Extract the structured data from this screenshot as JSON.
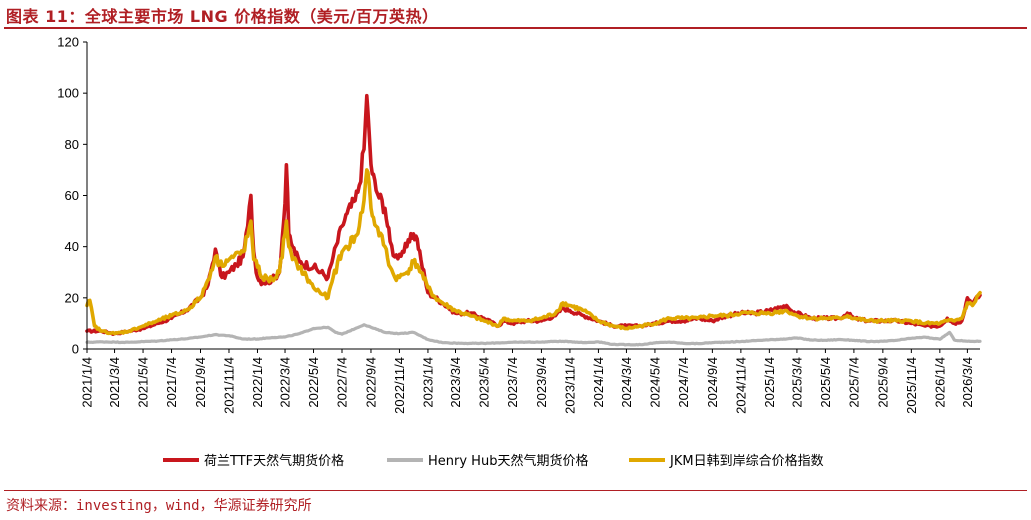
{
  "header": {
    "title": "图表 11：全球主要市场 LNG 价格指数（美元/百万英热）"
  },
  "footer": {
    "source": "资料来源：investing，wind，华源证券研究所"
  },
  "colors": {
    "ttf": "#c8161d",
    "henry": "#b4b4b4",
    "jkm": "#e0a800",
    "brand": "#b01f24"
  },
  "chart_data": {
    "type": "line",
    "title": "全球主要市场 LNG 价格指数（美元/百万英热）",
    "ylim": [
      0,
      120
    ],
    "yticks": [
      0,
      20,
      40,
      60,
      80,
      100,
      120
    ],
    "xlim": [
      "2021-01-04",
      "2026-03-31"
    ],
    "xtick_labels": [
      "2021/1/4",
      "2021/3/4",
      "2021/5/4",
      "2021/7/4",
      "2021/9/4",
      "2021/11/4",
      "2022/1/4",
      "2022/3/4",
      "2022/5/4",
      "2022/7/4",
      "2022/9/4",
      "2022/11/4",
      "2023/1/4",
      "2023/3/4",
      "2023/5/4",
      "2023/7/4",
      "2023/9/4",
      "2023/11/4",
      "2024/1/4",
      "2024/3/4",
      "2024/5/4",
      "2024/7/4",
      "2024/9/4",
      "2024/11/4",
      "2025/1/4",
      "2025/3/4",
      "2025/5/4",
      "2025/7/4",
      "2025/9/4",
      "2025/11/4",
      "2026/1/4",
      "2026/3/4"
    ],
    "grid": false,
    "legend_position": "bottom",
    "series": [
      {
        "name": "荷兰TTF天然气期货价格",
        "color": "#c8161d",
        "points": [
          [
            "2021-01-04",
            7
          ],
          [
            "2021-02-04",
            7
          ],
          [
            "2021-03-04",
            6
          ],
          [
            "2021-04-04",
            7
          ],
          [
            "2021-05-04",
            8
          ],
          [
            "2021-06-04",
            10
          ],
          [
            "2021-07-04",
            12
          ],
          [
            "2021-08-04",
            15
          ],
          [
            "2021-09-04",
            20
          ],
          [
            "2021-09-20",
            25
          ],
          [
            "2021-10-06",
            39
          ],
          [
            "2021-10-12",
            33
          ],
          [
            "2021-10-20",
            28
          ],
          [
            "2021-11-04",
            30
          ],
          [
            "2021-11-20",
            33
          ],
          [
            "2021-12-04",
            36
          ],
          [
            "2021-12-14",
            48
          ],
          [
            "2021-12-21",
            60
          ],
          [
            "2021-12-27",
            38
          ],
          [
            "2022-01-04",
            28
          ],
          [
            "2022-01-15",
            26
          ],
          [
            "2022-02-04",
            27
          ],
          [
            "2022-02-20",
            30
          ],
          [
            "2022-03-04",
            57
          ],
          [
            "2022-03-07",
            72
          ],
          [
            "2022-03-12",
            45
          ],
          [
            "2022-03-20",
            40
          ],
          [
            "2022-04-04",
            34
          ],
          [
            "2022-05-04",
            32
          ],
          [
            "2022-06-04",
            28
          ],
          [
            "2022-06-15",
            36
          ],
          [
            "2022-07-04",
            48
          ],
          [
            "2022-07-15",
            53
          ],
          [
            "2022-08-01",
            58
          ],
          [
            "2022-08-10",
            64
          ],
          [
            "2022-08-20",
            78
          ],
          [
            "2022-08-26",
            99
          ],
          [
            "2022-08-31",
            85
          ],
          [
            "2022-09-04",
            72
          ],
          [
            "2022-09-15",
            62
          ],
          [
            "2022-10-04",
            55
          ],
          [
            "2022-10-15",
            42
          ],
          [
            "2022-10-25",
            36
          ],
          [
            "2022-11-04",
            37
          ],
          [
            "2022-11-20",
            40
          ],
          [
            "2022-12-04",
            45
          ],
          [
            "2022-12-12",
            43
          ],
          [
            "2022-12-20",
            35
          ],
          [
            "2023-01-04",
            22
          ],
          [
            "2023-01-20",
            20
          ],
          [
            "2023-02-04",
            18
          ],
          [
            "2023-03-04",
            14
          ],
          [
            "2023-04-04",
            14
          ],
          [
            "2023-05-04",
            12
          ],
          [
            "2023-06-04",
            9
          ],
          [
            "2023-06-15",
            11
          ],
          [
            "2023-07-04",
            10
          ],
          [
            "2023-08-04",
            11
          ],
          [
            "2023-09-04",
            11
          ],
          [
            "2023-10-04",
            13
          ],
          [
            "2023-10-20",
            16
          ],
          [
            "2023-11-04",
            15
          ],
          [
            "2023-12-04",
            13
          ],
          [
            "2024-01-04",
            11
          ],
          [
            "2024-02-04",
            9
          ],
          [
            "2024-03-04",
            9
          ],
          [
            "2024-04-04",
            9
          ],
          [
            "2024-05-04",
            10
          ],
          [
            "2024-06-04",
            11
          ],
          [
            "2024-07-04",
            11
          ],
          [
            "2024-08-04",
            12
          ],
          [
            "2024-09-04",
            11
          ],
          [
            "2024-10-04",
            13
          ],
          [
            "2024-11-04",
            14
          ],
          [
            "2024-12-04",
            14
          ],
          [
            "2025-01-04",
            15
          ],
          [
            "2025-02-10",
            17
          ],
          [
            "2025-02-20",
            15
          ],
          [
            "2025-03-04",
            14
          ],
          [
            "2025-04-04",
            12
          ],
          [
            "2025-05-04",
            12
          ],
          [
            "2025-06-04",
            12
          ],
          [
            "2025-06-20",
            14
          ],
          [
            "2025-07-04",
            12
          ],
          [
            "2025-08-04",
            11
          ],
          [
            "2025-09-04",
            11
          ],
          [
            "2025-10-04",
            11
          ],
          [
            "2025-11-04",
            10
          ],
          [
            "2025-12-04",
            9
          ],
          [
            "2026-01-04",
            9
          ],
          [
            "2026-01-20",
            12
          ],
          [
            "2026-02-04",
            10
          ],
          [
            "2026-02-20",
            11
          ],
          [
            "2026-03-04",
            20
          ],
          [
            "2026-03-15",
            18
          ],
          [
            "2026-03-31",
            21
          ]
        ]
      },
      {
        "name": "Henry Hub天然气期货价格",
        "color": "#b4b4b4",
        "points": [
          [
            "2021-01-04",
            2.6
          ],
          [
            "2021-02-04",
            2.8
          ],
          [
            "2021-03-04",
            2.7
          ],
          [
            "2021-04-04",
            2.6
          ],
          [
            "2021-05-04",
            2.9
          ],
          [
            "2021-06-04",
            3.1
          ],
          [
            "2021-07-04",
            3.6
          ],
          [
            "2021-08-04",
            4.0
          ],
          [
            "2021-09-04",
            4.7
          ],
          [
            "2021-10-04",
            5.6
          ],
          [
            "2021-11-04",
            5.2
          ],
          [
            "2021-12-04",
            3.9
          ],
          [
            "2022-01-04",
            3.9
          ],
          [
            "2022-02-04",
            4.5
          ],
          [
            "2022-03-04",
            4.7
          ],
          [
            "2022-04-04",
            6.0
          ],
          [
            "2022-05-04",
            8.0
          ],
          [
            "2022-06-04",
            8.5
          ],
          [
            "2022-06-20",
            6.5
          ],
          [
            "2022-07-04",
            5.8
          ],
          [
            "2022-08-04",
            8.2
          ],
          [
            "2022-08-20",
            9.5
          ],
          [
            "2022-09-04",
            8.5
          ],
          [
            "2022-10-04",
            6.5
          ],
          [
            "2022-11-04",
            6.0
          ],
          [
            "2022-12-04",
            6.5
          ],
          [
            "2023-01-04",
            3.7
          ],
          [
            "2023-02-04",
            2.5
          ],
          [
            "2023-03-04",
            2.3
          ],
          [
            "2023-04-04",
            2.2
          ],
          [
            "2023-05-04",
            2.2
          ],
          [
            "2023-06-04",
            2.4
          ],
          [
            "2023-07-04",
            2.6
          ],
          [
            "2023-08-04",
            2.7
          ],
          [
            "2023-09-04",
            2.7
          ],
          [
            "2023-10-04",
            3.0
          ],
          [
            "2023-11-04",
            2.9
          ],
          [
            "2023-12-04",
            2.5
          ],
          [
            "2024-01-04",
            2.8
          ],
          [
            "2024-02-04",
            1.8
          ],
          [
            "2024-03-04",
            1.7
          ],
          [
            "2024-04-04",
            1.7
          ],
          [
            "2024-05-04",
            2.4
          ],
          [
            "2024-06-04",
            2.7
          ],
          [
            "2024-07-04",
            2.2
          ],
          [
            "2024-08-04",
            2.1
          ],
          [
            "2024-09-04",
            2.5
          ],
          [
            "2024-10-04",
            2.7
          ],
          [
            "2024-11-04",
            2.9
          ],
          [
            "2024-12-04",
            3.3
          ],
          [
            "2025-01-04",
            3.6
          ],
          [
            "2025-02-04",
            3.9
          ],
          [
            "2025-03-04",
            4.3
          ],
          [
            "2025-04-04",
            3.5
          ],
          [
            "2025-05-04",
            3.4
          ],
          [
            "2025-06-04",
            3.7
          ],
          [
            "2025-07-04",
            3.4
          ],
          [
            "2025-08-04",
            2.9
          ],
          [
            "2025-09-04",
            3.0
          ],
          [
            "2025-10-04",
            3.4
          ],
          [
            "2025-11-04",
            4.2
          ],
          [
            "2025-12-04",
            4.6
          ],
          [
            "2026-01-04",
            3.8
          ],
          [
            "2026-01-25",
            6.5
          ],
          [
            "2026-02-04",
            3.5
          ],
          [
            "2026-03-04",
            3.0
          ],
          [
            "2026-03-31",
            3.0
          ]
        ]
      },
      {
        "name": "JKM日韩到岸综合价格指数",
        "color": "#e0a800",
        "points": [
          [
            "2021-01-04",
            17
          ],
          [
            "2021-01-10",
            19
          ],
          [
            "2021-01-20",
            9
          ],
          [
            "2021-02-04",
            7
          ],
          [
            "2021-03-04",
            6
          ],
          [
            "2021-04-04",
            7
          ],
          [
            "2021-05-04",
            9
          ],
          [
            "2021-06-04",
            11
          ],
          [
            "2021-07-04",
            13
          ],
          [
            "2021-08-04",
            15
          ],
          [
            "2021-09-04",
            20
          ],
          [
            "2021-09-20",
            27
          ],
          [
            "2021-10-06",
            36
          ],
          [
            "2021-10-15",
            33
          ],
          [
            "2021-11-04",
            35
          ],
          [
            "2021-12-04",
            38
          ],
          [
            "2021-12-14",
            44
          ],
          [
            "2021-12-21",
            50
          ],
          [
            "2021-12-27",
            35
          ],
          [
            "2022-01-04",
            32
          ],
          [
            "2022-01-15",
            28
          ],
          [
            "2022-02-04",
            27
          ],
          [
            "2022-02-20",
            30
          ],
          [
            "2022-03-04",
            45
          ],
          [
            "2022-03-07",
            50
          ],
          [
            "2022-03-12",
            40
          ],
          [
            "2022-03-20",
            35
          ],
          [
            "2022-04-04",
            32
          ],
          [
            "2022-05-04",
            24
          ],
          [
            "2022-06-04",
            20
          ],
          [
            "2022-06-15",
            28
          ],
          [
            "2022-07-04",
            38
          ],
          [
            "2022-07-15",
            40
          ],
          [
            "2022-08-01",
            44
          ],
          [
            "2022-08-10",
            48
          ],
          [
            "2022-08-20",
            58
          ],
          [
            "2022-08-26",
            70
          ],
          [
            "2022-08-31",
            65
          ],
          [
            "2022-09-04",
            55
          ],
          [
            "2022-09-15",
            48
          ],
          [
            "2022-10-04",
            40
          ],
          [
            "2022-10-15",
            32
          ],
          [
            "2022-10-25",
            28
          ],
          [
            "2022-11-04",
            28
          ],
          [
            "2022-11-20",
            30
          ],
          [
            "2022-12-04",
            34
          ],
          [
            "2022-12-12",
            33
          ],
          [
            "2022-12-20",
            30
          ],
          [
            "2023-01-04",
            24
          ],
          [
            "2023-01-20",
            20
          ],
          [
            "2023-02-04",
            18
          ],
          [
            "2023-03-04",
            15
          ],
          [
            "2023-04-04",
            13
          ],
          [
            "2023-05-04",
            11
          ],
          [
            "2023-06-04",
            9
          ],
          [
            "2023-06-15",
            12
          ],
          [
            "2023-07-04",
            11
          ],
          [
            "2023-08-04",
            11
          ],
          [
            "2023-09-04",
            12
          ],
          [
            "2023-10-04",
            14
          ],
          [
            "2023-10-20",
            18
          ],
          [
            "2023-11-04",
            17
          ],
          [
            "2023-12-04",
            15
          ],
          [
            "2024-01-04",
            11
          ],
          [
            "2024-02-04",
            9
          ],
          [
            "2024-03-04",
            8
          ],
          [
            "2024-04-04",
            9
          ],
          [
            "2024-05-04",
            10
          ],
          [
            "2024-06-04",
            12
          ],
          [
            "2024-07-04",
            12
          ],
          [
            "2024-08-04",
            12
          ],
          [
            "2024-09-04",
            13
          ],
          [
            "2024-10-04",
            13
          ],
          [
            "2024-11-04",
            14
          ],
          [
            "2024-12-04",
            14
          ],
          [
            "2025-01-04",
            14
          ],
          [
            "2025-02-10",
            15
          ],
          [
            "2025-02-20",
            14
          ],
          [
            "2025-03-04",
            13
          ],
          [
            "2025-04-04",
            12
          ],
          [
            "2025-05-04",
            12
          ],
          [
            "2025-06-04",
            12
          ],
          [
            "2025-06-20",
            13
          ],
          [
            "2025-07-04",
            12
          ],
          [
            "2025-08-04",
            11
          ],
          [
            "2025-09-04",
            11
          ],
          [
            "2025-10-04",
            11
          ],
          [
            "2025-11-04",
            11
          ],
          [
            "2025-12-04",
            10
          ],
          [
            "2026-01-04",
            10
          ],
          [
            "2026-01-20",
            11
          ],
          [
            "2026-02-04",
            11
          ],
          [
            "2026-02-20",
            12
          ],
          [
            "2026-03-04",
            18
          ],
          [
            "2026-03-15",
            17
          ],
          [
            "2026-03-31",
            22
          ]
        ]
      }
    ]
  }
}
